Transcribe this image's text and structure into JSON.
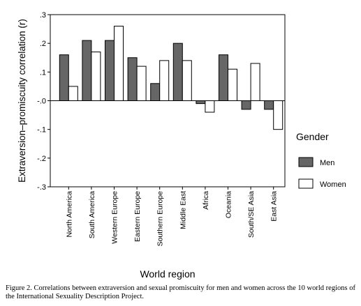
{
  "header_fragment": "",
  "chart_data": {
    "type": "bar",
    "title": "",
    "xlabel": "World region",
    "ylabel": "Extraversion–promiscuity correlation (r)",
    "ylim": [
      -0.3,
      0.3
    ],
    "yticks": [
      0.3,
      0.2,
      0.1,
      0.0,
      -0.1,
      -0.2,
      -0.3
    ],
    "ytick_labels": [
      ".3",
      ".2",
      ".1",
      "-.0",
      "-.1",
      "-.2",
      "-.3"
    ],
    "grid": false,
    "legend_position": "right",
    "legend_title": "Gender",
    "categories": [
      "North America",
      "South America",
      "Western Europe",
      "Eastern Europe",
      "Southern Europe",
      "Middle East",
      "Africa",
      "Oceania",
      "South/SE Asia",
      "East Asia"
    ],
    "series": [
      {
        "name": "Men",
        "color": "#666666",
        "values": [
          0.16,
          0.21,
          0.21,
          0.15,
          0.06,
          0.2,
          -0.01,
          0.16,
          -0.03,
          -0.03
        ]
      },
      {
        "name": "Women",
        "color": "#ffffff",
        "values": [
          0.05,
          0.17,
          0.26,
          0.12,
          0.14,
          0.14,
          -0.04,
          0.11,
          0.13,
          -0.1
        ]
      }
    ]
  },
  "caption": "Figure 2.   Correlations between extraversion and sexual promiscuity for men and women across the 10 world regions of the International Sexuality Description Project."
}
